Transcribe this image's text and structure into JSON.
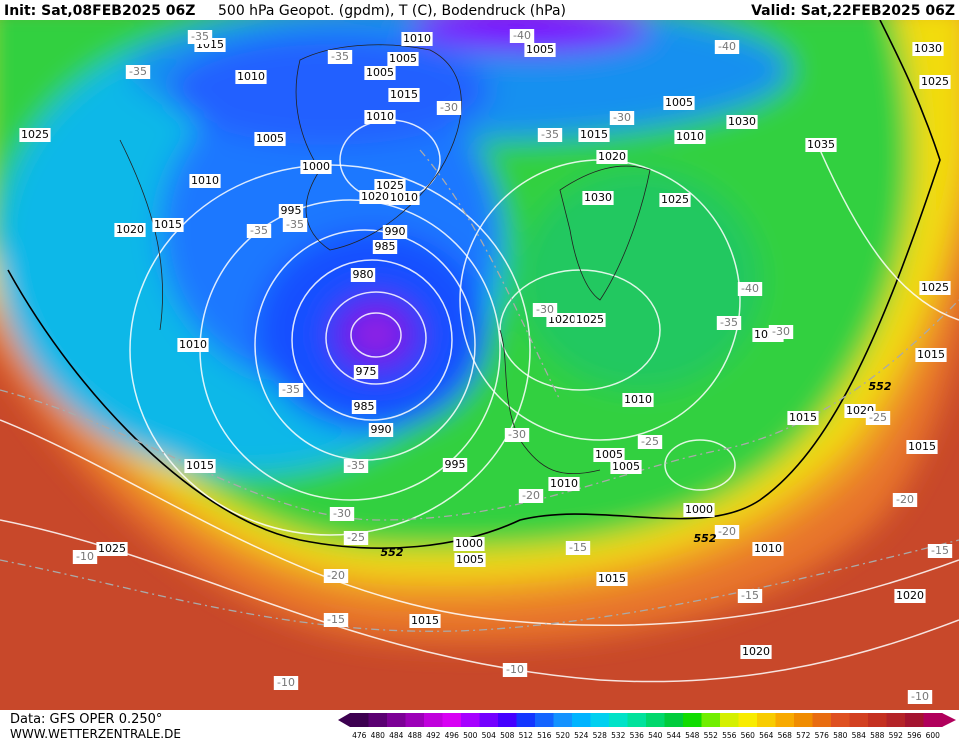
{
  "header": {
    "init": "Init: Sat,08FEB2025 06Z",
    "title": "500 hPa Geopot. (gpdm), T (C), Bodendruck (hPa)",
    "valid": "Valid: Sat,22FEB2025 06Z"
  },
  "map": {
    "pressure_labels": [
      "1010",
      "1015",
      "1005",
      "1005",
      "1010",
      "1005",
      "1015",
      "1030",
      "1025",
      "1010",
      "1005",
      "1030",
      "1015",
      "1010",
      "1025",
      "1005",
      "1035",
      "1020",
      "1000",
      "1010",
      "1025",
      "1020",
      "1010",
      "1030",
      "1025",
      "995",
      "1020",
      "1015",
      "990",
      "985",
      "980",
      "1025",
      "1020",
      "1025",
      "1030",
      "1010",
      "1015",
      "975",
      "985",
      "1010",
      "1015",
      "1020",
      "990",
      "1015",
      "1005",
      "1005",
      "995",
      "1015",
      "1010",
      "1000",
      "1000",
      "1010",
      "1025",
      "1005",
      "1015",
      "1020",
      "1015",
      "1020"
    ],
    "temperature_labels": [
      "-35",
      "-40",
      "-40",
      "-35",
      "-35",
      "-30",
      "-30",
      "-35",
      "-35",
      "-35",
      "-40",
      "-30",
      "-35",
      "-30",
      "-35",
      "-30",
      "-25",
      "-25",
      "-35",
      "-20",
      "-30",
      "-20",
      "-25",
      "-20",
      "-15",
      "-10",
      "-15",
      "-20",
      "-15",
      "-15",
      "-10",
      "-10",
      "-10"
    ],
    "contour_labels": [
      "552",
      "552",
      "552"
    ]
  },
  "footer": {
    "data": "Data: GFS OPER 0.250°",
    "site": "WWW.WETTERZENTRALE.DE"
  },
  "colorbar": {
    "ticks": [
      476,
      480,
      484,
      488,
      492,
      496,
      500,
      504,
      508,
      512,
      516,
      520,
      524,
      528,
      532,
      536,
      540,
      544,
      548,
      552,
      556,
      560,
      564,
      568,
      572,
      576,
      580,
      584,
      588,
      592,
      596,
      600
    ],
    "colors": [
      "#3c0050",
      "#5a0072",
      "#7c0096",
      "#9c00b8",
      "#c000dc",
      "#d800f4",
      "#a600ff",
      "#7400ff",
      "#4400ff",
      "#1436ff",
      "#1464ff",
      "#1492ff",
      "#00b4ff",
      "#00d0f0",
      "#00e2c8",
      "#00e29c",
      "#00d86c",
      "#00cc3c",
      "#10dc00",
      "#70ee00",
      "#d4f000",
      "#f8ec00",
      "#f8cc00",
      "#f8aa00",
      "#f08c00",
      "#e86c10",
      "#de5020",
      "#d24020",
      "#c43020",
      "#b42428",
      "#a41430",
      "#b0005c"
    ]
  }
}
